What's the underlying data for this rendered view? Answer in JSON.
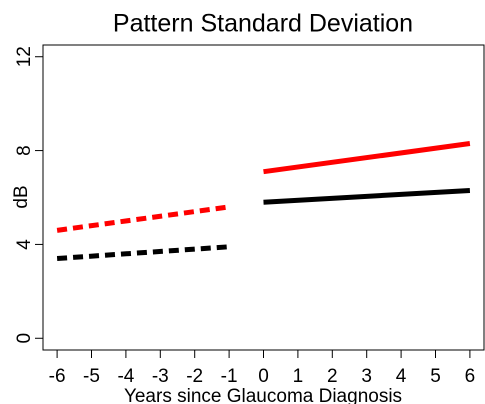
{
  "chart_data": {
    "type": "line",
    "title": "Pattern Standard Deviation",
    "x_label": "Years since Glaucoma Diagnosis",
    "y_label": "dB",
    "x": [
      -6,
      -1,
      0,
      6
    ],
    "series": [
      {
        "color": "#ff0000",
        "dashed": true,
        "values": [
          4.6,
          5.6,
          null,
          null
        ]
      },
      {
        "color": "#000000",
        "dashed": true,
        "values": [
          3.4,
          3.9,
          null,
          null
        ]
      },
      {
        "color": "#ff0000",
        "dashed": false,
        "values": [
          null,
          null,
          7.1,
          8.3
        ]
      },
      {
        "color": "#000000",
        "dashed": false,
        "values": [
          null,
          null,
          5.8,
          6.3
        ]
      }
    ],
    "xlim": [
      -6.41,
      6.41
    ],
    "xticks": [
      -6,
      -5,
      -4,
      -3,
      -2,
      -1,
      0,
      1,
      2,
      3,
      4,
      5,
      6
    ],
    "ylim": [
      -0.5,
      12.5
    ],
    "yticks": [
      0,
      4,
      8,
      12
    ]
  }
}
